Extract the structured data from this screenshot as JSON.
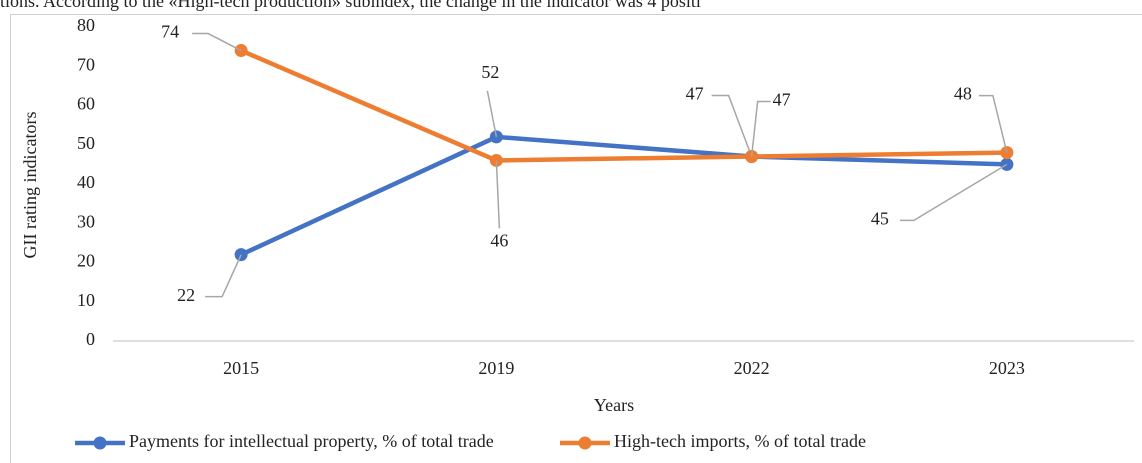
{
  "text_above": "tions. According to the «High-tech production» subindex, the change in the indicator was 4 positi",
  "chart_data": {
    "type": "line",
    "categories": [
      "2015",
      "2019",
      "2022",
      "2023"
    ],
    "series": [
      {
        "name": "Payments for intellectual property, % of total trade",
        "color": "#4472c4",
        "values": [
          22,
          52,
          47,
          45
        ]
      },
      {
        "name": "High-tech imports, % of total trade",
        "color": "#ed7d31",
        "values": [
          74,
          46,
          47,
          48
        ]
      }
    ],
    "ylim": [
      0,
      80
    ],
    "yticks": [
      0,
      10,
      20,
      30,
      40,
      50,
      60,
      70,
      80
    ],
    "xlabel": "Years",
    "ylabel": "GII rating indicators",
    "grid": false,
    "legend": "bottom"
  }
}
